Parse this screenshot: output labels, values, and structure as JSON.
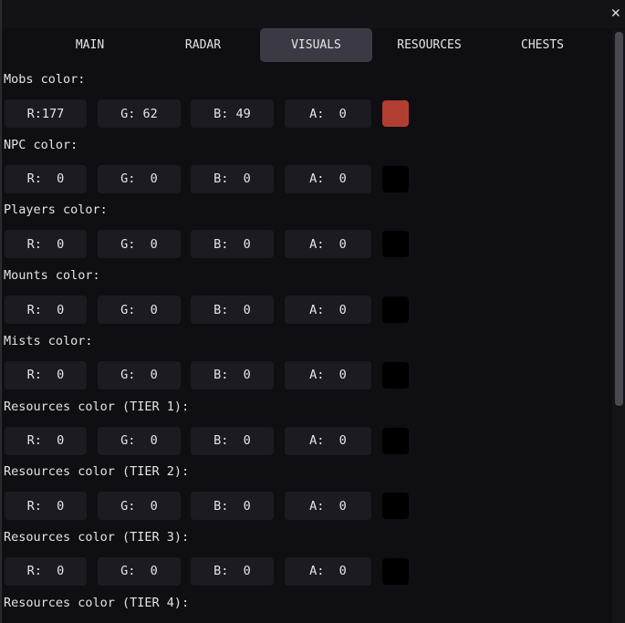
{
  "tabs": [
    {
      "label": "MAIN"
    },
    {
      "label": "RADAR"
    },
    {
      "label": "VISUALS",
      "active": true
    },
    {
      "label": "RESOURCES"
    },
    {
      "label": "CHESTS"
    }
  ],
  "close_icon": "close-icon",
  "sections": [
    {
      "label": "Mobs color:",
      "r": "R:177",
      "g": "G: 62",
      "b": "B: 49",
      "a": "A:  0",
      "swatch": "#b13e31"
    },
    {
      "label": "NPC color:",
      "r": "R:  0",
      "g": "G:  0",
      "b": "B:  0",
      "a": "A:  0",
      "swatch": "#000000"
    },
    {
      "label": "Players color:",
      "r": "R:  0",
      "g": "G:  0",
      "b": "B:  0",
      "a": "A:  0",
      "swatch": "#000000"
    },
    {
      "label": "Mounts color:",
      "r": "R:  0",
      "g": "G:  0",
      "b": "B:  0",
      "a": "A:  0",
      "swatch": "#000000"
    },
    {
      "label": "Mists color:",
      "r": "R:  0",
      "g": "G:  0",
      "b": "B:  0",
      "a": "A:  0",
      "swatch": "#000000"
    },
    {
      "label": "Resources color (TIER 1):",
      "r": "R:  0",
      "g": "G:  0",
      "b": "B:  0",
      "a": "A:  0",
      "swatch": "#000000"
    },
    {
      "label": "Resources color (TIER 2):",
      "r": "R:  0",
      "g": "G:  0",
      "b": "B:  0",
      "a": "A:  0",
      "swatch": "#000000"
    },
    {
      "label": "Resources color (TIER 3):",
      "r": "R:  0",
      "g": "G:  0",
      "b": "B:  0",
      "a": "A:  0",
      "swatch": "#000000"
    },
    {
      "label": "Resources color (TIER 4):"
    }
  ]
}
